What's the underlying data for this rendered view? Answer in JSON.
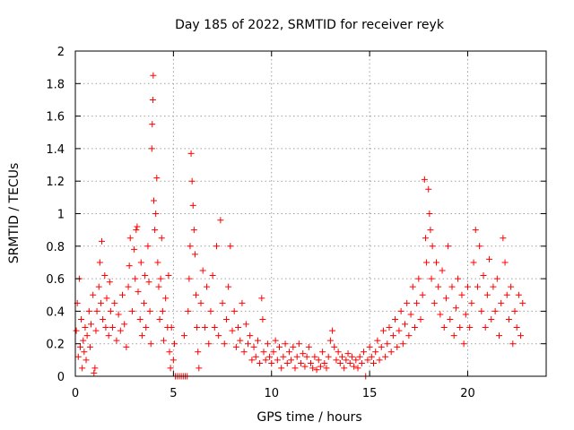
{
  "chart_data": {
    "type": "scatter",
    "title": "Day 185 of 2022, SRMTID for receiver reyk",
    "xlabel": "GPS time / hours",
    "ylabel": "SRMTID / TECUs",
    "xlim": [
      0,
      24
    ],
    "ylim": [
      0,
      2
    ],
    "xticks": [
      0,
      5,
      10,
      15,
      20
    ],
    "yticks": [
      0,
      0.2,
      0.4,
      0.6,
      0.8,
      1,
      1.2,
      1.4,
      1.6,
      1.8,
      2
    ],
    "xtick_labels": [
      "0",
      "5",
      "10",
      "15",
      "20"
    ],
    "ytick_labels": [
      "0",
      "0.2",
      "0.4",
      "0.6",
      "0.8",
      "1",
      "1.2",
      "1.4",
      "1.6",
      "1.8",
      "2"
    ],
    "grid": true,
    "marker": "+",
    "color": "#ff0000",
    "series": [
      {
        "name": "SRMTID",
        "points": [
          [
            0.05,
            0.28
          ],
          [
            0.1,
            0.45
          ],
          [
            0.15,
            0.12
          ],
          [
            0.2,
            0.6
          ],
          [
            0.25,
            0.18
          ],
          [
            0.3,
            0.35
          ],
          [
            0.35,
            0.05
          ],
          [
            0.4,
            0.22
          ],
          [
            0.45,
            0.15
          ],
          [
            0.5,
            0.3
          ],
          [
            0.55,
            0.1
          ],
          [
            0.6,
            0.25
          ],
          [
            0.7,
            0.4
          ],
          [
            0.75,
            0.18
          ],
          [
            0.8,
            0.32
          ],
          [
            0.9,
            0.5
          ],
          [
            0.95,
            0.02
          ],
          [
            1.0,
            0.05
          ],
          [
            1.05,
            0.28
          ],
          [
            1.1,
            0.4
          ],
          [
            1.2,
            0.55
          ],
          [
            1.25,
            0.7
          ],
          [
            1.3,
            0.45
          ],
          [
            1.35,
            0.83
          ],
          [
            1.4,
            0.35
          ],
          [
            1.5,
            0.62
          ],
          [
            1.55,
            0.3
          ],
          [
            1.6,
            0.48
          ],
          [
            1.7,
            0.25
          ],
          [
            1.75,
            0.58
          ],
          [
            1.8,
            0.4
          ],
          [
            1.9,
            0.3
          ],
          [
            2.0,
            0.45
          ],
          [
            2.1,
            0.22
          ],
          [
            2.2,
            0.38
          ],
          [
            2.3,
            0.28
          ],
          [
            2.4,
            0.5
          ],
          [
            2.5,
            0.32
          ],
          [
            2.6,
            0.18
          ],
          [
            2.7,
            0.55
          ],
          [
            2.75,
            0.68
          ],
          [
            2.8,
            0.85
          ],
          [
            2.9,
            0.4
          ],
          [
            3.0,
            0.78
          ],
          [
            3.05,
            0.6
          ],
          [
            3.1,
            0.9
          ],
          [
            3.15,
            0.92
          ],
          [
            3.2,
            0.52
          ],
          [
            3.3,
            0.35
          ],
          [
            3.35,
            0.7
          ],
          [
            3.4,
            0.25
          ],
          [
            3.5,
            0.45
          ],
          [
            3.55,
            0.62
          ],
          [
            3.6,
            0.3
          ],
          [
            3.7,
            0.8
          ],
          [
            3.75,
            0.58
          ],
          [
            3.8,
            0.4
          ],
          [
            3.85,
            0.2
          ],
          [
            3.9,
            1.4
          ],
          [
            3.92,
            1.55
          ],
          [
            3.95,
            1.7
          ],
          [
            3.97,
            1.85
          ],
          [
            4.0,
            1.08
          ],
          [
            4.05,
            0.9
          ],
          [
            4.1,
            1.0
          ],
          [
            4.15,
            1.22
          ],
          [
            4.2,
            0.7
          ],
          [
            4.25,
            0.55
          ],
          [
            4.3,
            0.35
          ],
          [
            4.35,
            0.6
          ],
          [
            4.4,
            0.85
          ],
          [
            4.45,
            0.4
          ],
          [
            4.5,
            0.22
          ],
          [
            4.6,
            0.48
          ],
          [
            4.7,
            0.3
          ],
          [
            4.75,
            0.62
          ],
          [
            4.8,
            0.15
          ],
          [
            4.85,
            0.05
          ],
          [
            4.9,
            0.3
          ],
          [
            5.0,
            0.1
          ],
          [
            5.05,
            0.2
          ],
          [
            5.1,
            0.0
          ],
          [
            5.2,
            0.0
          ],
          [
            5.3,
            0.0
          ],
          [
            5.4,
            0.0
          ],
          [
            5.5,
            0.0
          ],
          [
            5.55,
            0.25
          ],
          [
            5.6,
            0.0
          ],
          [
            5.7,
            0.0
          ],
          [
            5.75,
            0.4
          ],
          [
            5.8,
            0.6
          ],
          [
            5.85,
            0.8
          ],
          [
            5.9,
            1.37
          ],
          [
            5.95,
            1.2
          ],
          [
            6.0,
            1.05
          ],
          [
            6.05,
            0.9
          ],
          [
            6.1,
            0.75
          ],
          [
            6.15,
            0.5
          ],
          [
            6.2,
            0.3
          ],
          [
            6.25,
            0.15
          ],
          [
            6.3,
            0.05
          ],
          [
            6.4,
            0.45
          ],
          [
            6.5,
            0.65
          ],
          [
            6.6,
            0.3
          ],
          [
            6.7,
            0.55
          ],
          [
            6.8,
            0.2
          ],
          [
            6.9,
            0.4
          ],
          [
            7.0,
            0.62
          ],
          [
            7.1,
            0.3
          ],
          [
            7.2,
            0.8
          ],
          [
            7.3,
            0.25
          ],
          [
            7.4,
            0.96
          ],
          [
            7.5,
            0.45
          ],
          [
            7.6,
            0.2
          ],
          [
            7.7,
            0.35
          ],
          [
            7.8,
            0.55
          ],
          [
            7.9,
            0.8
          ],
          [
            8.0,
            0.28
          ],
          [
            8.1,
            0.4
          ],
          [
            8.2,
            0.18
          ],
          [
            8.3,
            0.3
          ],
          [
            8.4,
            0.22
          ],
          [
            8.5,
            0.45
          ],
          [
            8.6,
            0.15
          ],
          [
            8.7,
            0.32
          ],
          [
            8.8,
            0.2
          ],
          [
            8.9,
            0.25
          ],
          [
            9.0,
            0.1
          ],
          [
            9.1,
            0.18
          ],
          [
            9.2,
            0.12
          ],
          [
            9.3,
            0.22
          ],
          [
            9.4,
            0.08
          ],
          [
            9.5,
            0.48
          ],
          [
            9.55,
            0.35
          ],
          [
            9.6,
            0.15
          ],
          [
            9.7,
            0.1
          ],
          [
            9.8,
            0.2
          ],
          [
            9.9,
            0.12
          ],
          [
            10.0,
            0.08
          ],
          [
            10.1,
            0.15
          ],
          [
            10.2,
            0.22
          ],
          [
            10.3,
            0.1
          ],
          [
            10.4,
            0.18
          ],
          [
            10.5,
            0.05
          ],
          [
            10.6,
            0.12
          ],
          [
            10.7,
            0.2
          ],
          [
            10.8,
            0.08
          ],
          [
            10.9,
            0.15
          ],
          [
            11.0,
            0.1
          ],
          [
            11.1,
            0.18
          ],
          [
            11.2,
            0.05
          ],
          [
            11.3,
            0.12
          ],
          [
            11.4,
            0.2
          ],
          [
            11.5,
            0.08
          ],
          [
            11.6,
            0.14
          ],
          [
            11.7,
            0.06
          ],
          [
            11.8,
            0.12
          ],
          [
            11.9,
            0.18
          ],
          [
            12.0,
            0.08
          ],
          [
            12.1,
            0.05
          ],
          [
            12.2,
            0.12
          ],
          [
            12.3,
            0.04
          ],
          [
            12.4,
            0.1
          ],
          [
            12.5,
            0.06
          ],
          [
            12.6,
            0.15
          ],
          [
            12.7,
            0.08
          ],
          [
            12.8,
            0.05
          ],
          [
            12.9,
            0.12
          ],
          [
            13.0,
            0.22
          ],
          [
            13.1,
            0.28
          ],
          [
            13.2,
            0.18
          ],
          [
            13.3,
            0.1
          ],
          [
            13.4,
            0.15
          ],
          [
            13.5,
            0.08
          ],
          [
            13.6,
            0.12
          ],
          [
            13.7,
            0.05
          ],
          [
            13.8,
            0.1
          ],
          [
            13.9,
            0.14
          ],
          [
            14.0,
            0.08
          ],
          [
            14.1,
            0.12
          ],
          [
            14.2,
            0.06
          ],
          [
            14.3,
            0.1
          ],
          [
            14.4,
            0.05
          ],
          [
            14.5,
            0.12
          ],
          [
            14.6,
            0.08
          ],
          [
            14.7,
            0.15
          ],
          [
            14.8,
            0.0
          ],
          [
            14.9,
            0.1
          ],
          [
            15.0,
            0.18
          ],
          [
            15.1,
            0.12
          ],
          [
            15.2,
            0.08
          ],
          [
            15.3,
            0.15
          ],
          [
            15.4,
            0.22
          ],
          [
            15.5,
            0.1
          ],
          [
            15.6,
            0.18
          ],
          [
            15.7,
            0.28
          ],
          [
            15.8,
            0.12
          ],
          [
            15.9,
            0.2
          ],
          [
            16.0,
            0.3
          ],
          [
            16.1,
            0.15
          ],
          [
            16.2,
            0.25
          ],
          [
            16.3,
            0.35
          ],
          [
            16.4,
            0.18
          ],
          [
            16.5,
            0.28
          ],
          [
            16.6,
            0.4
          ],
          [
            16.7,
            0.2
          ],
          [
            16.8,
            0.32
          ],
          [
            16.9,
            0.45
          ],
          [
            17.0,
            0.25
          ],
          [
            17.1,
            0.38
          ],
          [
            17.2,
            0.55
          ],
          [
            17.3,
            0.3
          ],
          [
            17.4,
            0.45
          ],
          [
            17.5,
            0.6
          ],
          [
            17.6,
            0.35
          ],
          [
            17.7,
            0.5
          ],
          [
            17.8,
            1.21
          ],
          [
            17.85,
            0.85
          ],
          [
            17.9,
            0.7
          ],
          [
            18.0,
            1.15
          ],
          [
            18.05,
            1.0
          ],
          [
            18.1,
            0.9
          ],
          [
            18.15,
            0.6
          ],
          [
            18.2,
            0.8
          ],
          [
            18.3,
            0.45
          ],
          [
            18.4,
            0.7
          ],
          [
            18.5,
            0.55
          ],
          [
            18.6,
            0.38
          ],
          [
            18.7,
            0.65
          ],
          [
            18.8,
            0.3
          ],
          [
            18.9,
            0.48
          ],
          [
            19.0,
            0.8
          ],
          [
            19.1,
            0.35
          ],
          [
            19.2,
            0.55
          ],
          [
            19.3,
            0.25
          ],
          [
            19.4,
            0.42
          ],
          [
            19.5,
            0.6
          ],
          [
            19.6,
            0.3
          ],
          [
            19.7,
            0.5
          ],
          [
            19.8,
            0.2
          ],
          [
            19.9,
            0.38
          ],
          [
            20.0,
            0.55
          ],
          [
            20.1,
            0.3
          ],
          [
            20.2,
            0.45
          ],
          [
            20.3,
            0.7
          ],
          [
            20.4,
            0.9
          ],
          [
            20.5,
            0.55
          ],
          [
            20.6,
            0.8
          ],
          [
            20.7,
            0.4
          ],
          [
            20.8,
            0.62
          ],
          [
            20.9,
            0.3
          ],
          [
            21.0,
            0.5
          ],
          [
            21.1,
            0.72
          ],
          [
            21.2,
            0.35
          ],
          [
            21.3,
            0.55
          ],
          [
            21.4,
            0.4
          ],
          [
            21.5,
            0.6
          ],
          [
            21.6,
            0.25
          ],
          [
            21.7,
            0.45
          ],
          [
            21.8,
            0.85
          ],
          [
            21.9,
            0.7
          ],
          [
            22.0,
            0.5
          ],
          [
            22.1,
            0.35
          ],
          [
            22.2,
            0.55
          ],
          [
            22.3,
            0.2
          ],
          [
            22.4,
            0.4
          ],
          [
            22.5,
            0.3
          ],
          [
            22.6,
            0.5
          ],
          [
            22.7,
            0.25
          ],
          [
            22.8,
            0.45
          ]
        ]
      }
    ]
  }
}
